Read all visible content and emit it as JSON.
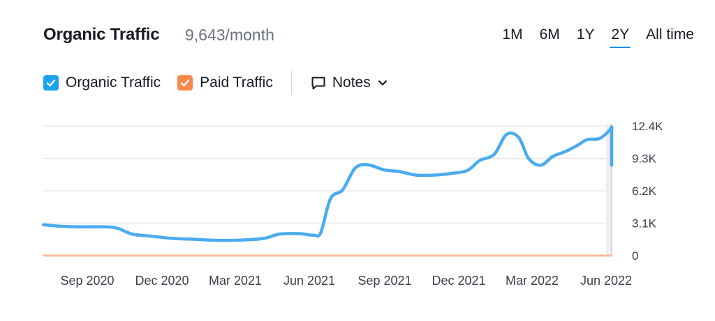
{
  "header": {
    "title": "Organic Traffic",
    "metric": "9,643/month",
    "ranges": [
      "1M",
      "6M",
      "1Y",
      "2Y",
      "All time"
    ],
    "active_range": "2Y"
  },
  "legend": {
    "items": [
      {
        "label": "Organic Traffic",
        "color": "#1aa3f2",
        "checked": true
      },
      {
        "label": "Paid Traffic",
        "color": "#f7894a",
        "checked": true
      }
    ],
    "notes_label": "Notes"
  },
  "colors": {
    "organic": "#4aabf0",
    "paid": "#f7b89a",
    "grid": "#e6e8ec",
    "accent": "#1a8fe8"
  },
  "chart_data": {
    "type": "line",
    "x_labels": [
      "Sep 2020",
      "Dec 2020",
      "Mar 2021",
      "Jun 2021",
      "Sep 2021",
      "Dec 2021",
      "Mar 2022",
      "Jun 2022"
    ],
    "y_ticks": [
      {
        "label": "0",
        "value": 0
      },
      {
        "label": "3.1K",
        "value": 3100
      },
      {
        "label": "6.2K",
        "value": 6200
      },
      {
        "label": "9.3K",
        "value": 9300
      },
      {
        "label": "12.4K",
        "value": 12400
      }
    ],
    "ylim": [
      0,
      12400
    ],
    "x_range_months": [
      -1.25,
      22.0
    ],
    "series": [
      {
        "name": "Organic Traffic",
        "color": "#4aabf0",
        "points": [
          [
            -1.25,
            2950
          ],
          [
            -0.5,
            2800
          ],
          [
            0.3,
            2750
          ],
          [
            1.3,
            2750
          ],
          [
            1.8,
            2600
          ],
          [
            2.4,
            2050
          ],
          [
            3.2,
            1850
          ],
          [
            4.0,
            1650
          ],
          [
            5.0,
            1550
          ],
          [
            6.0,
            1450
          ],
          [
            7.0,
            1500
          ],
          [
            7.8,
            1650
          ],
          [
            8.4,
            2050
          ],
          [
            9.2,
            2100
          ],
          [
            9.8,
            1950
          ],
          [
            10.1,
            2200
          ],
          [
            10.5,
            5450
          ],
          [
            11.0,
            6300
          ],
          [
            11.5,
            8350
          ],
          [
            12.0,
            8700
          ],
          [
            12.7,
            8200
          ],
          [
            13.3,
            8050
          ],
          [
            14.0,
            7700
          ],
          [
            14.7,
            7700
          ],
          [
            15.4,
            7850
          ],
          [
            16.1,
            8150
          ],
          [
            16.6,
            9100
          ],
          [
            17.2,
            9700
          ],
          [
            17.7,
            11600
          ],
          [
            18.2,
            11300
          ],
          [
            18.6,
            9300
          ],
          [
            19.1,
            8650
          ],
          [
            19.6,
            9500
          ],
          [
            20.1,
            9950
          ],
          [
            20.6,
            10550
          ],
          [
            21.0,
            11100
          ],
          [
            21.5,
            11200
          ],
          [
            21.9,
            11950
          ],
          [
            22.2,
            12300
          ],
          [
            22.5,
            11800
          ],
          [
            22.9,
            8900
          ],
          [
            23.5,
            8800
          ],
          [
            24.0,
            8900
          ],
          [
            24.6,
            9050
          ],
          [
            25.0,
            9500
          ],
          [
            25.3,
            9643
          ]
        ]
      },
      {
        "name": "Paid Traffic",
        "color": "#f7b89a",
        "points": [
          [
            -1.25,
            0
          ],
          [
            25.3,
            0
          ]
        ]
      }
    ]
  }
}
